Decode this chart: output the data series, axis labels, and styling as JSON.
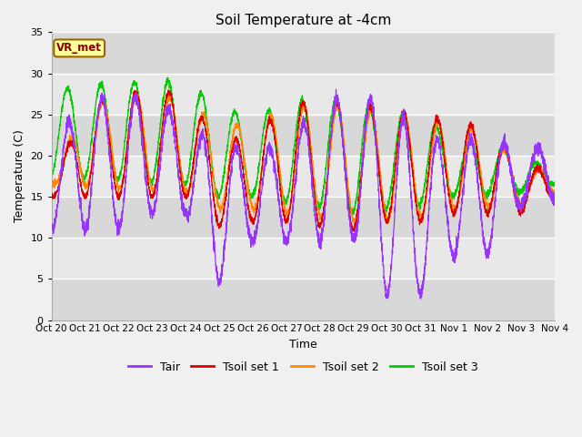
{
  "title": "Soil Temperature at -4cm",
  "xlabel": "Time",
  "ylabel": "Temperature (C)",
  "ylim": [
    0,
    35
  ],
  "colors": {
    "Tair": "#9933ff",
    "Tsoil1": "#dd0000",
    "Tsoil2": "#ff8800",
    "Tsoil3": "#00cc00"
  },
  "legend_labels": [
    "Tair",
    "Tsoil set 1",
    "Tsoil set 2",
    "Tsoil set 3"
  ],
  "xtick_labels": [
    "Oct 20",
    "Oct 21",
    "Oct 22",
    "Oct 23",
    "Oct 24",
    "Oct 25",
    "Oct 26",
    "Oct 27",
    "Oct 28",
    "Oct 29",
    "Oct 30",
    "Oct 31",
    "Nov 1",
    "Nov 2",
    "Nov 3",
    "Nov 4"
  ],
  "xtick_positions": [
    0,
    1,
    2,
    3,
    4,
    5,
    6,
    7,
    8,
    9,
    10,
    11,
    12,
    13,
    14,
    15
  ],
  "label_box_text": "VR_met",
  "label_box_facecolor": "#ffff99",
  "label_box_edgecolor": "#996600",
  "fig_facecolor": "#f0f0f0",
  "plot_facecolor": "#f0f0f0",
  "n_points": 3600
}
